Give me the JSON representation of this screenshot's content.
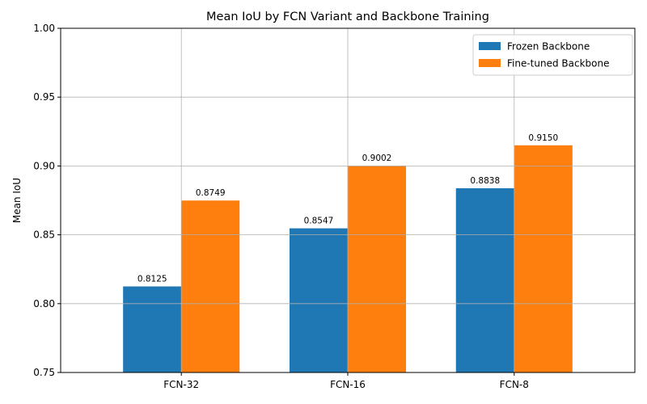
{
  "chart_data": {
    "type": "bar",
    "title": "Mean IoU by FCN Variant and Backbone Training",
    "xlabel": "",
    "ylabel": "Mean IoU",
    "categories": [
      "FCN-32",
      "FCN-16",
      "FCN-8"
    ],
    "series": [
      {
        "name": "Frozen Backbone",
        "values": [
          0.8125,
          0.8547,
          0.8838
        ],
        "color": "#1f77b4"
      },
      {
        "name": "Fine-tuned Backbone",
        "values": [
          0.8749,
          0.9002,
          0.915
        ],
        "color": "#ff7f0e"
      }
    ],
    "ylim": [
      0.75,
      1.0
    ],
    "yticks": [
      "0.75",
      "0.80",
      "0.85",
      "0.90",
      "0.95",
      "1.00"
    ],
    "value_labels": [
      [
        "0.8125",
        "0.8547",
        "0.8838"
      ],
      [
        "0.8749",
        "0.9002",
        "0.9150"
      ]
    ],
    "grid": true,
    "legend": "top-right"
  }
}
